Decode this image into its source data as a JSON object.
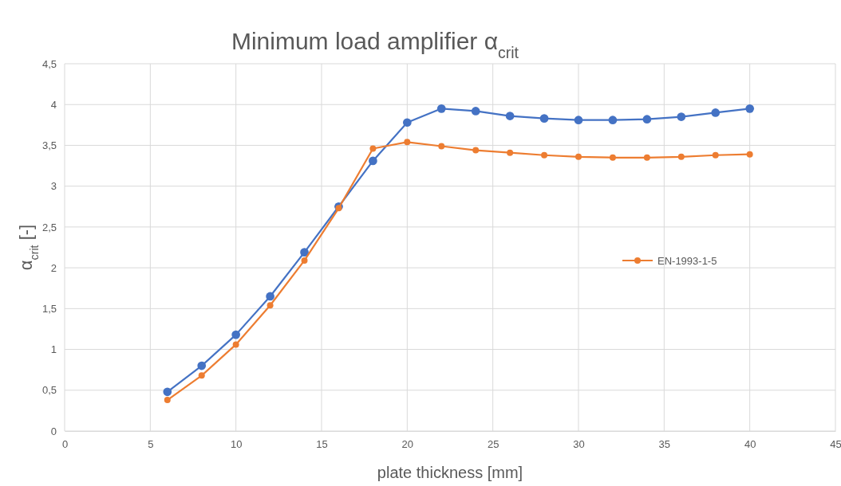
{
  "chart_data": {
    "type": "line",
    "title": "Minimum load amplifier α$_{crit}$",
    "xlabel": "plate thickness [mm]",
    "ylabel": "α$_{crit}$  [-]",
    "x": [
      6,
      8,
      10,
      12,
      14,
      16,
      18,
      20,
      22,
      24,
      26,
      28,
      30,
      32,
      34,
      36,
      38,
      40
    ],
    "series": [
      {
        "color": "#4472c4",
        "values": [
          0.48,
          0.8,
          1.18,
          1.65,
          2.19,
          2.75,
          3.31,
          3.78,
          3.95,
          3.92,
          3.86,
          3.83,
          3.81,
          3.81,
          3.82,
          3.85,
          3.9,
          3.95
        ]
      },
      {
        "name": "EN-1993-1-5",
        "color": "#ed7d31",
        "values": [
          0.38,
          0.68,
          1.06,
          1.54,
          2.09,
          2.73,
          3.46,
          3.54,
          3.49,
          3.44,
          3.41,
          3.38,
          3.36,
          3.35,
          3.35,
          3.36,
          3.38,
          3.39
        ]
      }
    ],
    "xlim": [
      0,
      45
    ],
    "xticks": [
      0,
      5,
      10,
      15,
      20,
      25,
      30,
      35,
      40,
      45
    ],
    "ylim": [
      0,
      4.5
    ],
    "yticks": [
      0,
      {
        "value": 0.5,
        "label": "0,5"
      },
      1,
      {
        "value": 1.5,
        "label": "1,5"
      },
      2,
      {
        "value": 2.5,
        "label": "2,5"
      },
      3,
      {
        "value": 3.5,
        "label": "3,5"
      },
      4,
      {
        "value": 4.5,
        "label": "4,5"
      }
    ],
    "grid": true,
    "legend": "right",
    "marker": "circle",
    "line_style": "solid"
  }
}
